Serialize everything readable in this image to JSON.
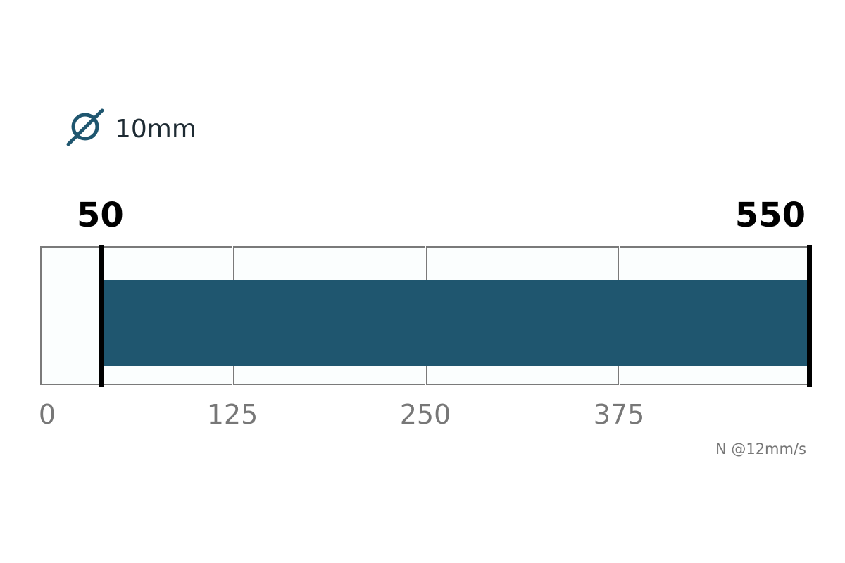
{
  "header": {
    "diameter_icon": "diameter-icon",
    "diameter_label": "10mm"
  },
  "colors": {
    "bar": "#1f566f",
    "marker": "#000000",
    "tick_text": "#777777",
    "icon": "#1f566f"
  },
  "chart_data": {
    "type": "bar",
    "orientation": "horizontal",
    "range": {
      "min": 50,
      "max": 550
    },
    "min_label": "50",
    "max_label": "550",
    "ticks": [
      0,
      125,
      250,
      375
    ],
    "tick_labels": [
      "0",
      "125",
      "250",
      "375"
    ],
    "unit_label": "N @12mm/s",
    "grid": true
  }
}
